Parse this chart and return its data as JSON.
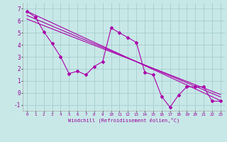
{
  "xlabel": "Windchill (Refroidissement éolien,°C)",
  "bg_color": "#c8e8e8",
  "line_color": "#aa00aa",
  "xlim": [
    -0.5,
    23.5
  ],
  "ylim": [
    -1.5,
    7.5
  ],
  "xticks": [
    0,
    1,
    2,
    3,
    4,
    5,
    6,
    7,
    8,
    9,
    10,
    11,
    12,
    13,
    14,
    15,
    16,
    17,
    18,
    19,
    20,
    21,
    22,
    23
  ],
  "yticks": [
    -1,
    0,
    1,
    2,
    3,
    4,
    5,
    6,
    7
  ],
  "line1_x": [
    0,
    1,
    2,
    3,
    4,
    5,
    6,
    7,
    8,
    9,
    10,
    11,
    12,
    13,
    14,
    15,
    16,
    17,
    18,
    19,
    20,
    21,
    22,
    23
  ],
  "line1_y": [
    6.8,
    6.3,
    5.1,
    4.1,
    3.0,
    1.6,
    1.8,
    1.5,
    2.2,
    2.6,
    5.4,
    5.0,
    4.6,
    4.2,
    1.7,
    1.5,
    -0.3,
    -1.2,
    -0.2,
    0.5,
    0.5,
    0.5,
    -0.7,
    -0.7
  ],
  "line2_x": [
    0,
    23
  ],
  "line2_y": [
    6.8,
    -0.65
  ],
  "line3_x": [
    0,
    23
  ],
  "line3_y": [
    6.45,
    -0.35
  ],
  "line4_x": [
    0,
    23
  ],
  "line4_y": [
    6.15,
    -0.15
  ],
  "grid_color": "#a0c8c8",
  "tick_color": "#990099",
  "xlabel_color": "#990099"
}
